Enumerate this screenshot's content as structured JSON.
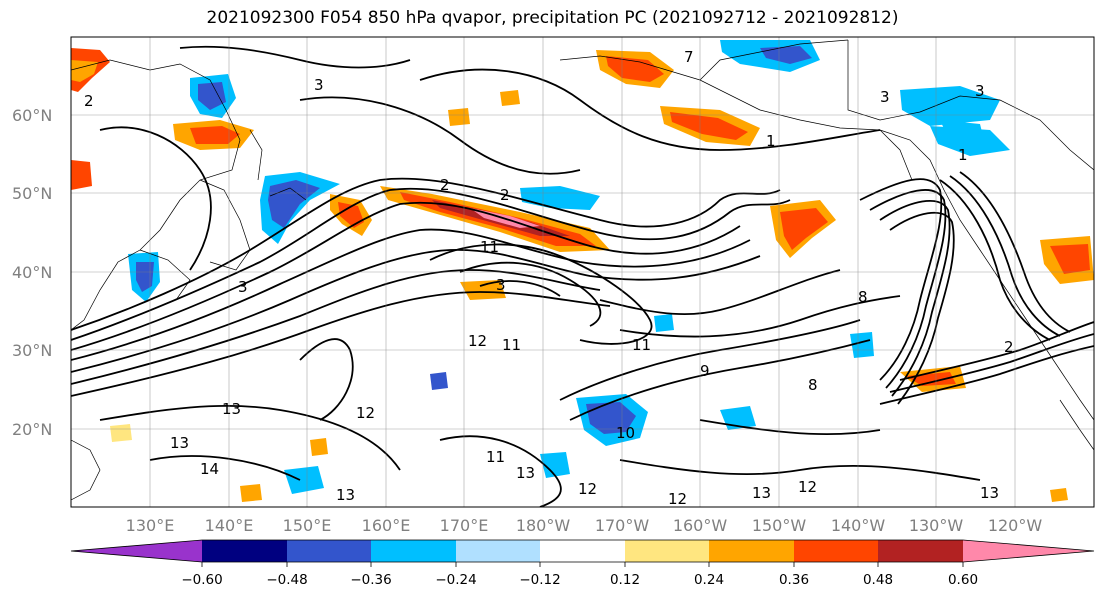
{
  "title": "2021092300 F054 850 hPa qvapor, precipitation PC (2021092712 - 2021092812)",
  "map": {
    "lat_labels": [
      "60°N",
      "50°N",
      "40°N",
      "30°N",
      "20°N"
    ],
    "lon_labels": [
      "130°E",
      "140°E",
      "150°E",
      "160°E",
      "170°E",
      "180°W",
      "170°W",
      "160°W",
      "150°W",
      "140°W",
      "130°W",
      "120°W"
    ],
    "contour_labels": [
      "2",
      "3",
      "7",
      "3",
      "1",
      "3",
      "2",
      "2",
      "11",
      "3",
      "3",
      "12",
      "11",
      "11",
      "13",
      "12",
      "14",
      "13",
      "13",
      "10",
      "11",
      "13",
      "12",
      "12",
      "13",
      "12",
      "13",
      "9",
      "8",
      "8",
      "1",
      "2"
    ]
  },
  "colorbar": {
    "tick_labels": [
      "−0.60",
      "−0.48",
      "−0.36",
      "−0.24",
      "−0.12",
      "0.12",
      "0.24",
      "0.36",
      "0.48",
      "0.60"
    ],
    "colors": [
      "#9933cc",
      "#000080",
      "#3355cc",
      "#00bfff",
      "#b0e0ff",
      "#ffffff",
      "#ffe680",
      "#ffa500",
      "#ff4500",
      "#b22222",
      "#ff88aa"
    ]
  }
}
